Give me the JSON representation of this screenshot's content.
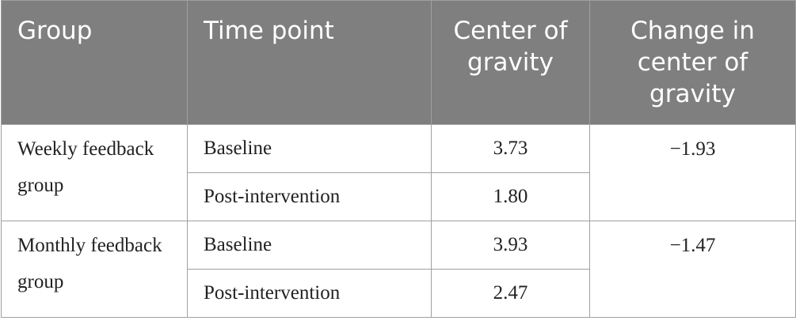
{
  "table": {
    "header": [
      "Group",
      "Time point",
      "Center of gravity",
      "Change in center of gravity"
    ],
    "groups": [
      {
        "name": "Weekly feedback group",
        "change": "−1.93",
        "rows": [
          {
            "time": "Baseline",
            "value": "3.73"
          },
          {
            "time": "Post-intervention",
            "value": "1.80"
          }
        ]
      },
      {
        "name": "Monthly feedback group",
        "change": "−1.47",
        "rows": [
          {
            "time": "Baseline",
            "value": "3.93"
          },
          {
            "time": "Post-intervention",
            "value": "2.47"
          }
        ]
      }
    ]
  }
}
